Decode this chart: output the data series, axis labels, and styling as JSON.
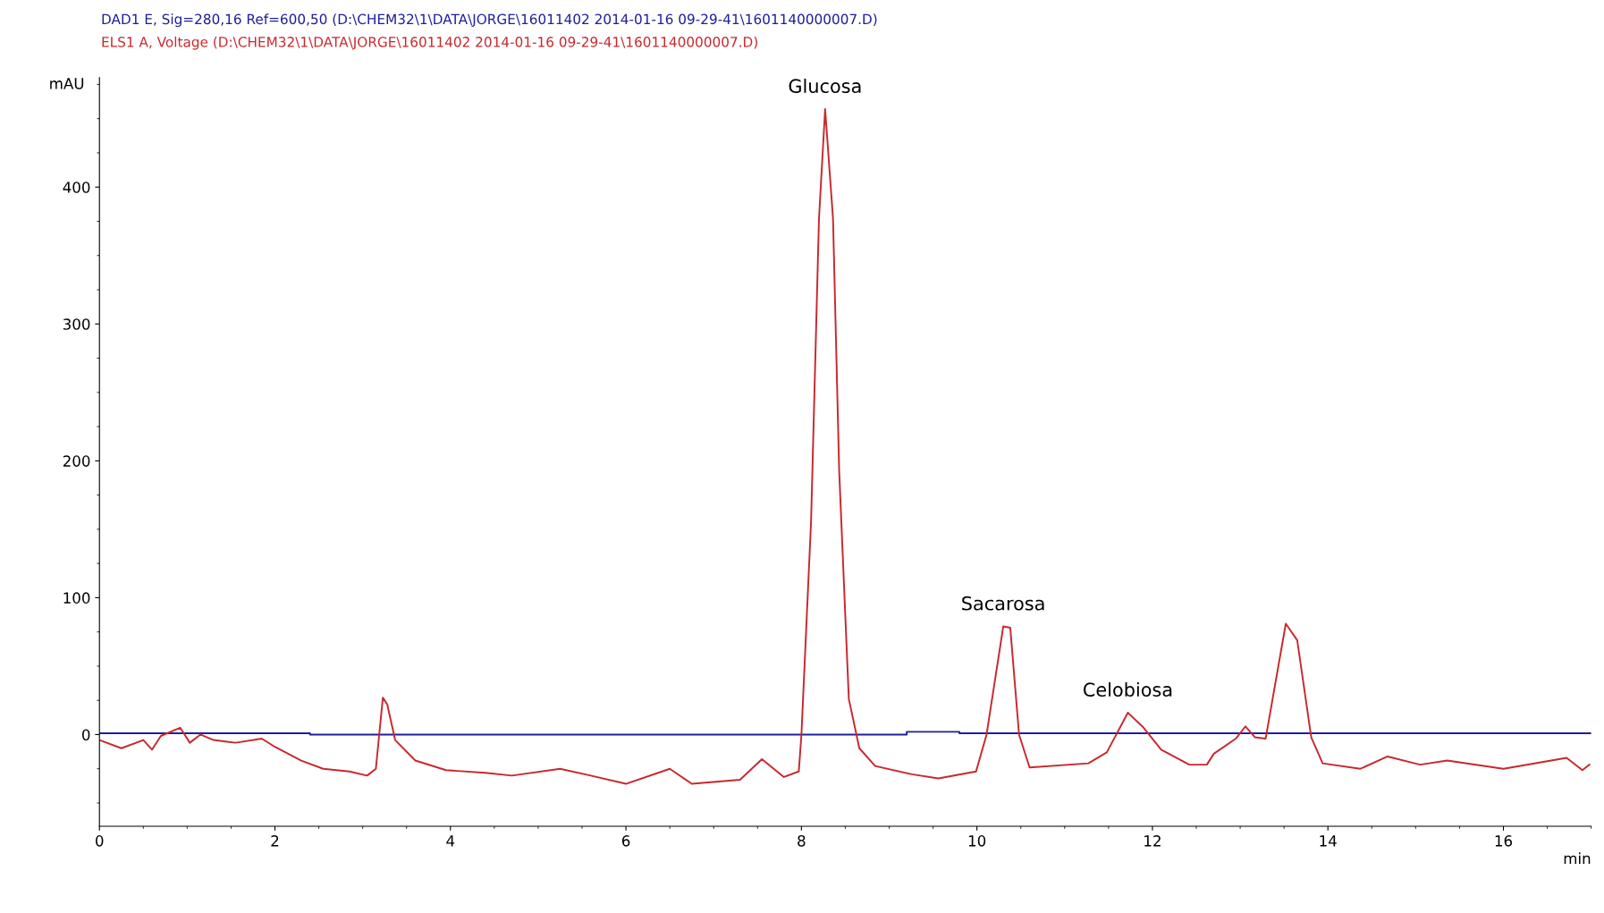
{
  "chart_data": {
    "type": "line",
    "xlabel": "min",
    "ylabel": "mAU",
    "xlim": [
      0,
      17
    ],
    "ylim": [
      -67,
      480
    ],
    "xticks": [
      0,
      2,
      4,
      6,
      8,
      10,
      12,
      14,
      16
    ],
    "yticks": [
      0,
      100,
      200,
      300,
      400
    ],
    "grid": false,
    "legend": "top",
    "marker": "none",
    "line_style": "solid",
    "series": [
      {
        "name": "DAD1 E, Sig=280,16 Ref=600,50 (D:\\CHEM32\\1\\DATA\\JORGE\\16011402 2014-01-16 09-29-41\\1601140000007.D)",
        "color": "#1f1f9a",
        "x": [
          0,
          2.4,
          2.4,
          9.2,
          9.2,
          9.8,
          9.8,
          17
        ],
        "values": [
          1,
          1,
          0,
          0,
          2,
          2,
          1,
          1
        ]
      },
      {
        "name": "ELS1 A, Voltage (D:\\CHEM32\\1\\DATA\\JORGE\\16011402 2014-01-16 09-29-41\\1601140000007.D)",
        "color": "#c8282d",
        "x": [
          0,
          0.25,
          0.5,
          0.6,
          0.7,
          0.92,
          1.03,
          1.15,
          1.3,
          1.55,
          1.85,
          2.0,
          2.3,
          2.55,
          2.85,
          3.05,
          3.15,
          3.23,
          3.28,
          3.37,
          3.6,
          3.95,
          4.4,
          4.7,
          5.25,
          5.6,
          6.0,
          6.5,
          6.75,
          7.3,
          7.55,
          7.8,
          7.97,
          8.0,
          8.11,
          8.2,
          8.27,
          8.36,
          8.43,
          8.54,
          8.66,
          8.84,
          9.26,
          9.56,
          9.99,
          10.11,
          10.3,
          10.38,
          10.48,
          10.6,
          11.27,
          11.48,
          11.72,
          11.9,
          12.1,
          12.42,
          12.62,
          12.7,
          12.95,
          13.06,
          13.17,
          13.29,
          13.52,
          13.65,
          13.81,
          13.94,
          14.37,
          14.68,
          15.05,
          15.36,
          16.0,
          16.72,
          16.9,
          16.98
        ],
        "values": [
          -4,
          -10,
          -4,
          -11,
          -1,
          5,
          -6,
          0,
          -4,
          -6,
          -3,
          -9,
          -19,
          -25,
          -27,
          -30,
          -25,
          27,
          22,
          -4,
          -19,
          -26,
          -28,
          -30,
          -25,
          -30,
          -36,
          -25,
          -36,
          -33,
          -18,
          -31,
          -27,
          0,
          156,
          377,
          457,
          377,
          193,
          26,
          -10,
          -23,
          -29,
          -32,
          -27,
          0,
          79,
          78,
          0,
          -24,
          -21,
          -13,
          16,
          5,
          -11,
          -22,
          -22,
          -14,
          -3,
          6,
          -2,
          -3,
          81,
          69,
          -2,
          -21,
          -25,
          -16,
          -22,
          -19,
          -25,
          -17,
          -26,
          -22
        ]
      }
    ],
    "annotations": [
      {
        "text": "Glucosa",
        "x": 8.27,
        "y": 457
      },
      {
        "text": "Sacarosa",
        "x": 10.3,
        "y": 79
      },
      {
        "text": "Celobiosa",
        "x": 11.72,
        "y": 16
      }
    ]
  }
}
